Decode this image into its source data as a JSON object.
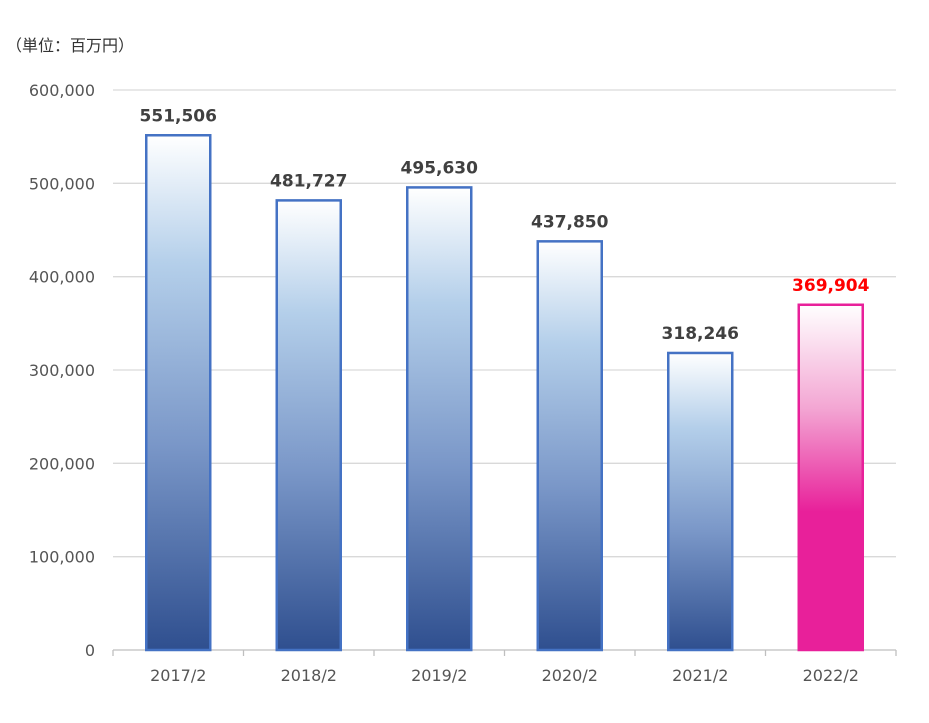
{
  "unit_label": "（単位：百万円）",
  "colors": {
    "grid": "#d9d9d9",
    "axis": "#bfbfbf",
    "bar_border": "#4472c4",
    "bar_top": "#ffffff",
    "bar_mid": "#9db9dd",
    "bar_bottom": "#2f4f8f",
    "highlight_top": "#fbe6f2",
    "highlight_bottom": "#e8209a",
    "label_normal": "#404040",
    "label_highlight": "#ff0000"
  },
  "chart_data": {
    "type": "bar",
    "title": "",
    "xlabel": "",
    "ylabel": "",
    "categories": [
      "2017/2",
      "2018/2",
      "2019/2",
      "2020/2",
      "2021/2",
      "2022/2"
    ],
    "values": [
      551506,
      481727,
      495630,
      437850,
      318246,
      369904
    ],
    "data_labels": [
      "551,506",
      "481,727",
      "495,630",
      "437,850",
      "318,246",
      "369,904"
    ],
    "highlight_index": 5,
    "ylim": [
      0,
      600000
    ],
    "yticks": [
      0,
      100000,
      200000,
      300000,
      400000,
      500000,
      600000
    ],
    "ytick_labels": [
      "0",
      "100,000",
      "200,000",
      "300,000",
      "400,000",
      "500,000",
      "600,000"
    ],
    "grid": true,
    "legend": "none"
  }
}
